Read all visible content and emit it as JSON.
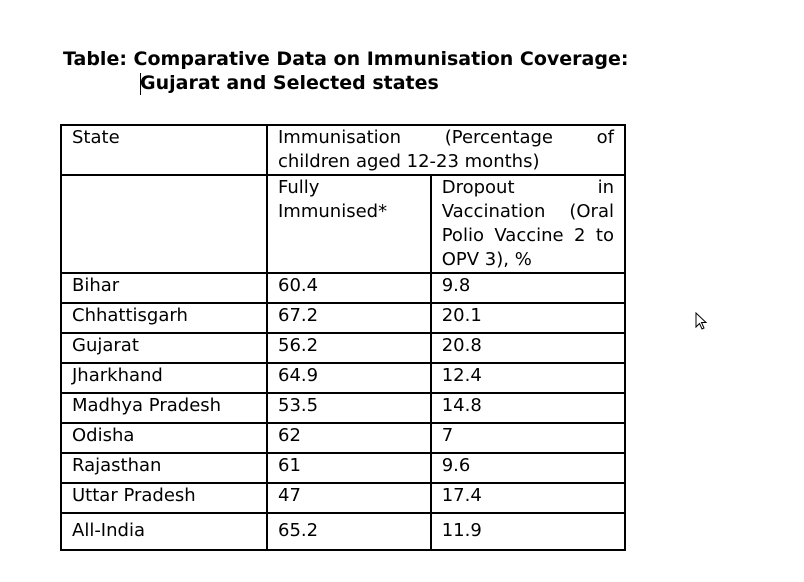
{
  "title": {
    "line1": "Table: Comparative Data on Immunisation Coverage:",
    "line2": "Gujarat and Selected states"
  },
  "table": {
    "header": {
      "state": "State",
      "group_line1": "Immunisation (Percentage of",
      "group_line2": "children aged 12-23 months)",
      "fully_line1": "Fully",
      "fully_line2": "Immunised*",
      "dropout_line1": "Dropout in",
      "dropout_line2": "Vaccination (Oral",
      "dropout_line3": "Polio Vaccine 2 to",
      "dropout_line4": "OPV 3), %"
    },
    "rows": [
      {
        "state": "Bihar",
        "fully": "60.4",
        "dropout": "9.8"
      },
      {
        "state": "Chhattisgarh",
        "fully": "67.2",
        "dropout": "20.1"
      },
      {
        "state": "Gujarat",
        "fully": "56.2",
        "dropout": "20.8"
      },
      {
        "state": "Jharkhand",
        "fully": "64.9",
        "dropout": "12.4"
      },
      {
        "state": "Madhya Pradesh",
        "fully": "53.5",
        "dropout": "14.8"
      },
      {
        "state": "Odisha",
        "fully": "62",
        "dropout": "7"
      },
      {
        "state": "Rajasthan",
        "fully": "61",
        "dropout": "9.6"
      },
      {
        "state": "Uttar Pradesh",
        "fully": "47",
        "dropout": "17.4"
      },
      {
        "state": "All-India",
        "fully": "65.2",
        "dropout": "11.9"
      }
    ]
  },
  "cursor_icon": "mouse-pointer-icon"
}
